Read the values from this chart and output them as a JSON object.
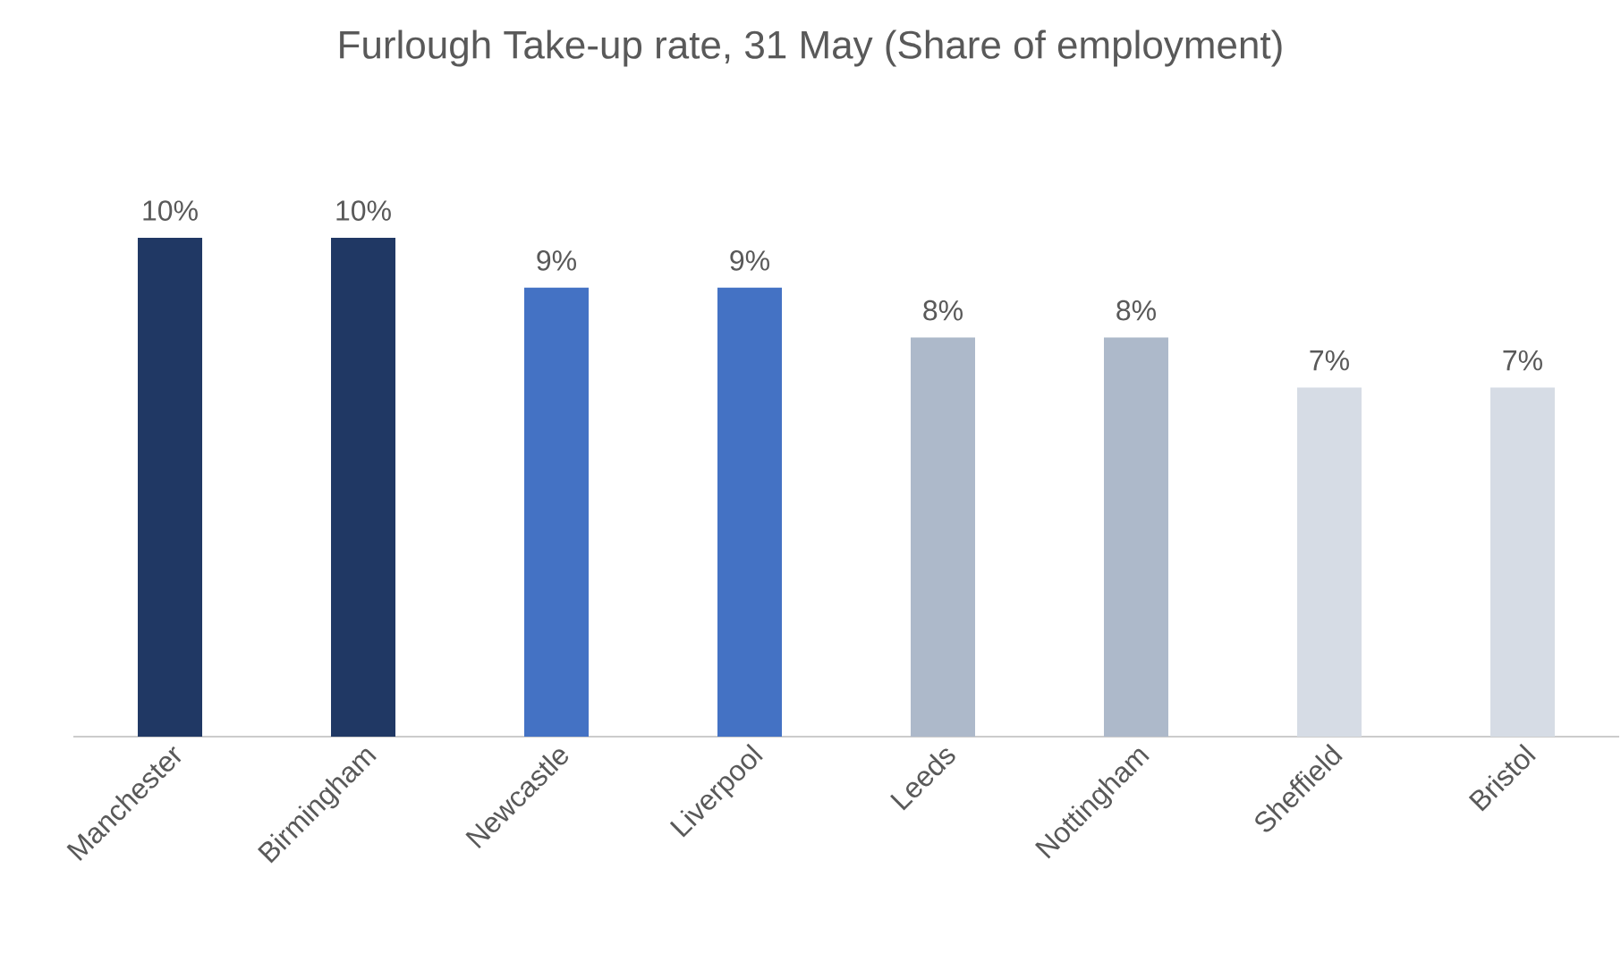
{
  "chart_data": {
    "type": "bar",
    "title": "Furlough Take-up rate, 31 May (Share of employment)",
    "categories": [
      "Manchester",
      "Birmingham",
      "Newcastle",
      "Liverpool",
      "Leeds",
      "Nottingham",
      "Sheffield",
      "Bristol"
    ],
    "values": [
      10,
      10,
      9,
      9,
      8,
      8,
      7,
      7
    ],
    "value_labels": [
      "10%",
      "10%",
      "9%",
      "9%",
      "8%",
      "8%",
      "7%",
      "7%"
    ],
    "colors": [
      "#203864",
      "#203864",
      "#4472c4",
      "#4472c4",
      "#adb9ca",
      "#adb9ca",
      "#d6dce5",
      "#d6dce5"
    ],
    "tick_labels": "x"
  }
}
